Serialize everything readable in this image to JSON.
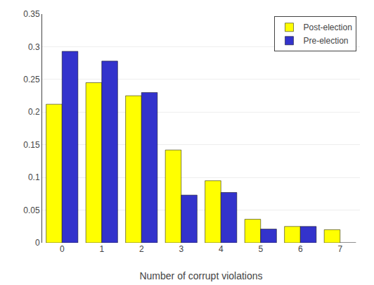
{
  "chart_data": {
    "type": "bar",
    "xlabel": "Number of corrupt violations",
    "categories": [
      0,
      1,
      2,
      3,
      4,
      5,
      6,
      7
    ],
    "series": [
      {
        "name": "Post-election",
        "color": "#FFFF00",
        "values": [
          0.212,
          0.245,
          0.225,
          0.142,
          0.095,
          0.036,
          0.025,
          0.02
        ]
      },
      {
        "name": "Pre-election",
        "color": "#3333CC",
        "values": [
          0.293,
          0.278,
          0.23,
          0.073,
          0.077,
          0.021,
          0.025,
          0.0
        ]
      }
    ],
    "ylim": [
      0,
      0.35
    ],
    "yticks": [
      0,
      0.05,
      0.1,
      0.15,
      0.2,
      0.25,
      0.3,
      0.35
    ],
    "grid": true,
    "legend": "upper right"
  }
}
